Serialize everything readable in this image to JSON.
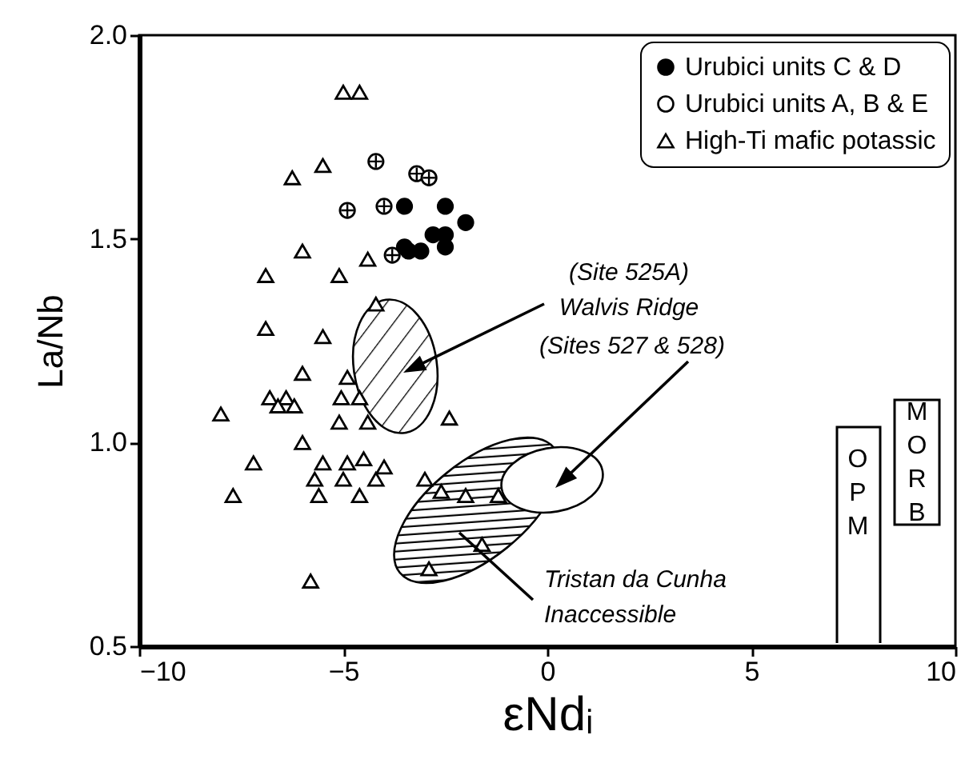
{
  "chart_data": {
    "type": "scatter",
    "xlabel": "εNdᵢ",
    "ylabel": "La/Nb",
    "xlim": [
      -10,
      10
    ],
    "ylim": [
      0.5,
      2.0
    ],
    "xticks": [
      -10,
      -5,
      0,
      5,
      10
    ],
    "yticks": [
      0.5,
      {
        "value": 1,
        "label": "1.0"
      },
      1.5,
      {
        "value": 2,
        "label": "2.0"
      }
    ],
    "legend": "top right",
    "grid": false,
    "series": [
      {
        "name": "Urubici units C & D",
        "color": "#000000",
        "marker": "circle",
        "x": [
          -3.5,
          -2.5,
          -2.0,
          -2.8,
          -2.5,
          -2.5,
          -3.1,
          -3.5,
          -3.4
        ],
        "values": [
          1.58,
          1.58,
          1.54,
          1.51,
          1.51,
          1.48,
          1.47,
          1.48,
          1.47
        ]
      },
      {
        "name": "Urubici units A, B & E",
        "color": "#000000",
        "marker": "cross",
        "x": [
          -4.2,
          -3.2,
          -2.9,
          -4.9,
          -4.0,
          -3.8
        ],
        "values": [
          1.69,
          1.66,
          1.65,
          1.57,
          1.58,
          1.46
        ]
      },
      {
        "name": "High-Ti mafic potassic",
        "color": "#000000",
        "marker": "triangle",
        "x": [
          -5.0,
          -4.6,
          -6.25,
          -5.5,
          -6.0,
          -6.9,
          -5.1,
          -4.4,
          -4.2,
          -6.9,
          -5.5,
          -6.0,
          -6.8,
          -6.4,
          -6.6,
          -6.2,
          -8.0,
          -4.9,
          -5.05,
          -4.6,
          -5.1,
          -4.4,
          -2.4,
          -6.0,
          -7.2,
          -5.5,
          -4.9,
          -4.5,
          -4.0,
          -5.7,
          -5.0,
          -4.2,
          -7.7,
          -5.6,
          -4.6,
          -5.8,
          -3.0,
          -2.6,
          -2.0,
          -1.2,
          -1.6,
          -2.9
        ],
        "values": [
          1.86,
          1.86,
          1.65,
          1.68,
          1.47,
          1.41,
          1.41,
          1.45,
          1.34,
          1.28,
          1.26,
          1.17,
          1.11,
          1.11,
          1.09,
          1.09,
          1.07,
          1.16,
          1.11,
          1.11,
          1.05,
          1.05,
          1.06,
          1.0,
          0.95,
          0.95,
          0.95,
          0.96,
          0.94,
          0.91,
          0.91,
          0.91,
          0.87,
          0.87,
          0.87,
          0.66,
          0.91,
          0.88,
          0.87,
          0.87,
          0.75,
          0.69
        ]
      }
    ],
    "annotations": [
      "(Site 525A)\nWalvis Ridge",
      "(Sites 527 & 528)",
      "Tristan da Cunha\nInaccessible",
      "OPM",
      "MORB"
    ]
  }
}
